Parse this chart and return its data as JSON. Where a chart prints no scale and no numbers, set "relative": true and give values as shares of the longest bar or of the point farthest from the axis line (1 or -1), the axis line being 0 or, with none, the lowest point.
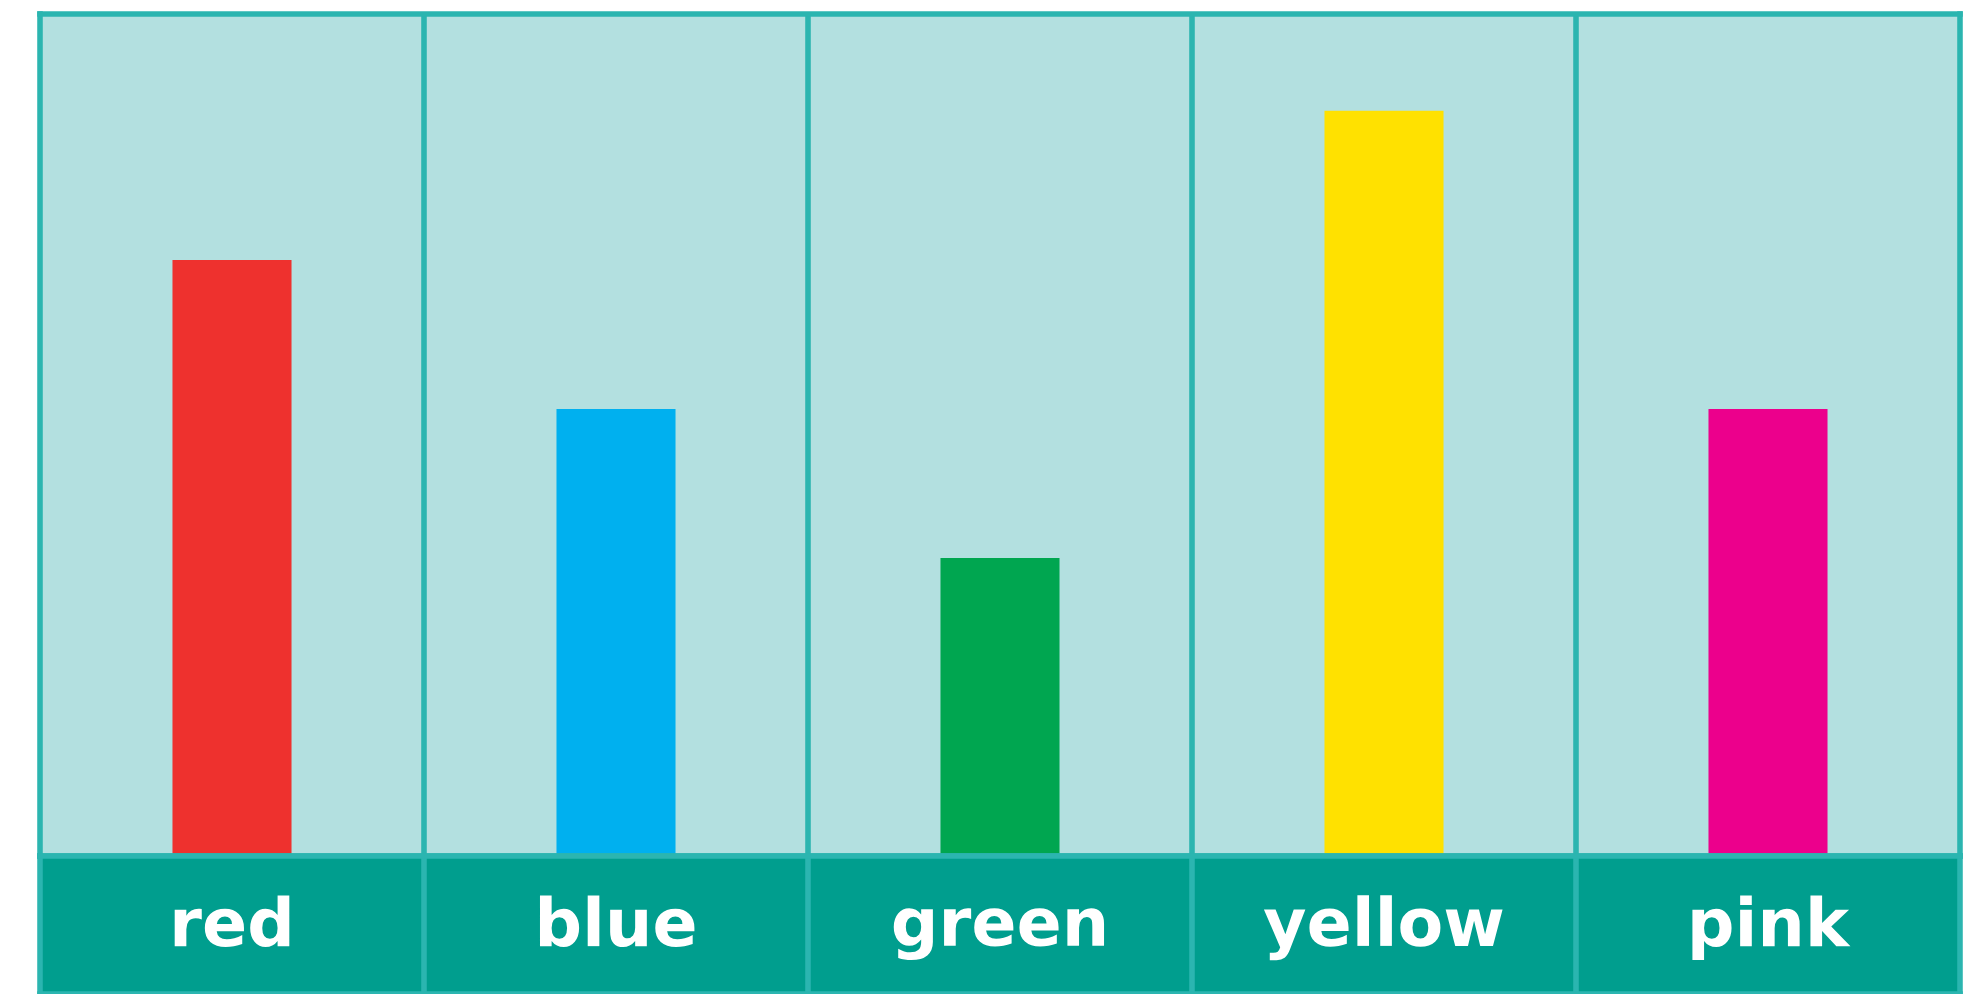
{
  "chart_data": {
    "type": "bar",
    "relative": true,
    "categories": [
      "red",
      "blue",
      "green",
      "yellow",
      "pink"
    ],
    "values": [
      0.8,
      0.6,
      0.4,
      1,
      0.6
    ],
    "colors": [
      "#ee312e",
      "#00b0ef",
      "#00a650",
      "#ffe100",
      "#ec008c"
    ],
    "grid": "x"
  }
}
